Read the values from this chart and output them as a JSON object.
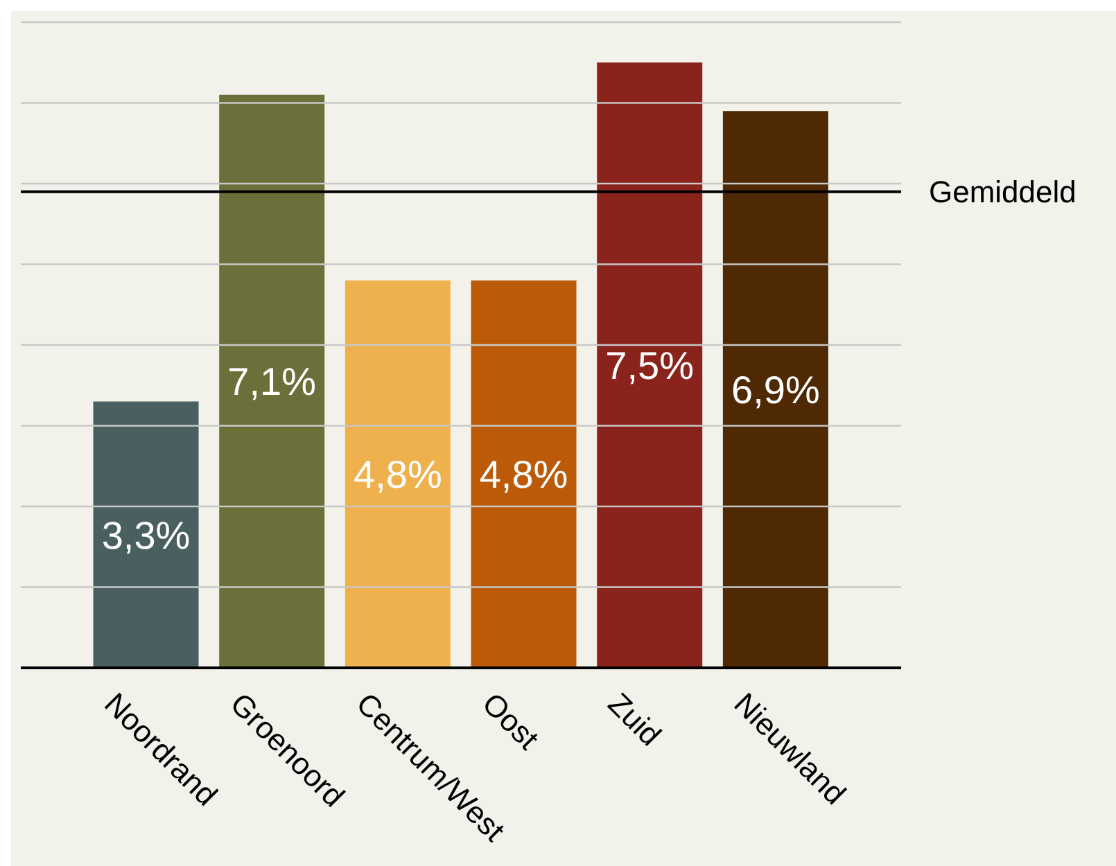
{
  "chart_data": {
    "type": "bar",
    "categories": [
      "Noordrand",
      "Groenoord",
      "Centrum/West",
      "Oost",
      "Zuid",
      "Nieuwland"
    ],
    "values": [
      3.3,
      7.1,
      4.8,
      4.8,
      7.5,
      6.9
    ],
    "colors": [
      "#4a5f60",
      "#6b703a",
      "#efb04e",
      "#bb5b09",
      "#8a231b",
      "#4f2804"
    ],
    "value_labels": [
      "3,3%",
      "7,1%",
      "4,8%",
      "4,8%",
      "7,5%",
      "6,9%"
    ],
    "ylim": [
      0,
      8
    ],
    "yticks": [
      {
        "value": 0,
        "label": null
      },
      {
        "value": 1,
        "label": null
      },
      {
        "value": 2,
        "label": null
      },
      {
        "value": 3,
        "label": null
      },
      {
        "value": 4,
        "label": null
      },
      {
        "value": 5,
        "label": null
      },
      {
        "value": 6,
        "label": null
      },
      {
        "value": 7,
        "label": null
      },
      {
        "value": 8,
        "label": null
      }
    ],
    "tick_labels": "x",
    "grid": "y",
    "ref_lines": [
      {
        "axis": "y",
        "value": 5.9,
        "label": "Gemiddeld",
        "color": "#000000"
      }
    ]
  }
}
